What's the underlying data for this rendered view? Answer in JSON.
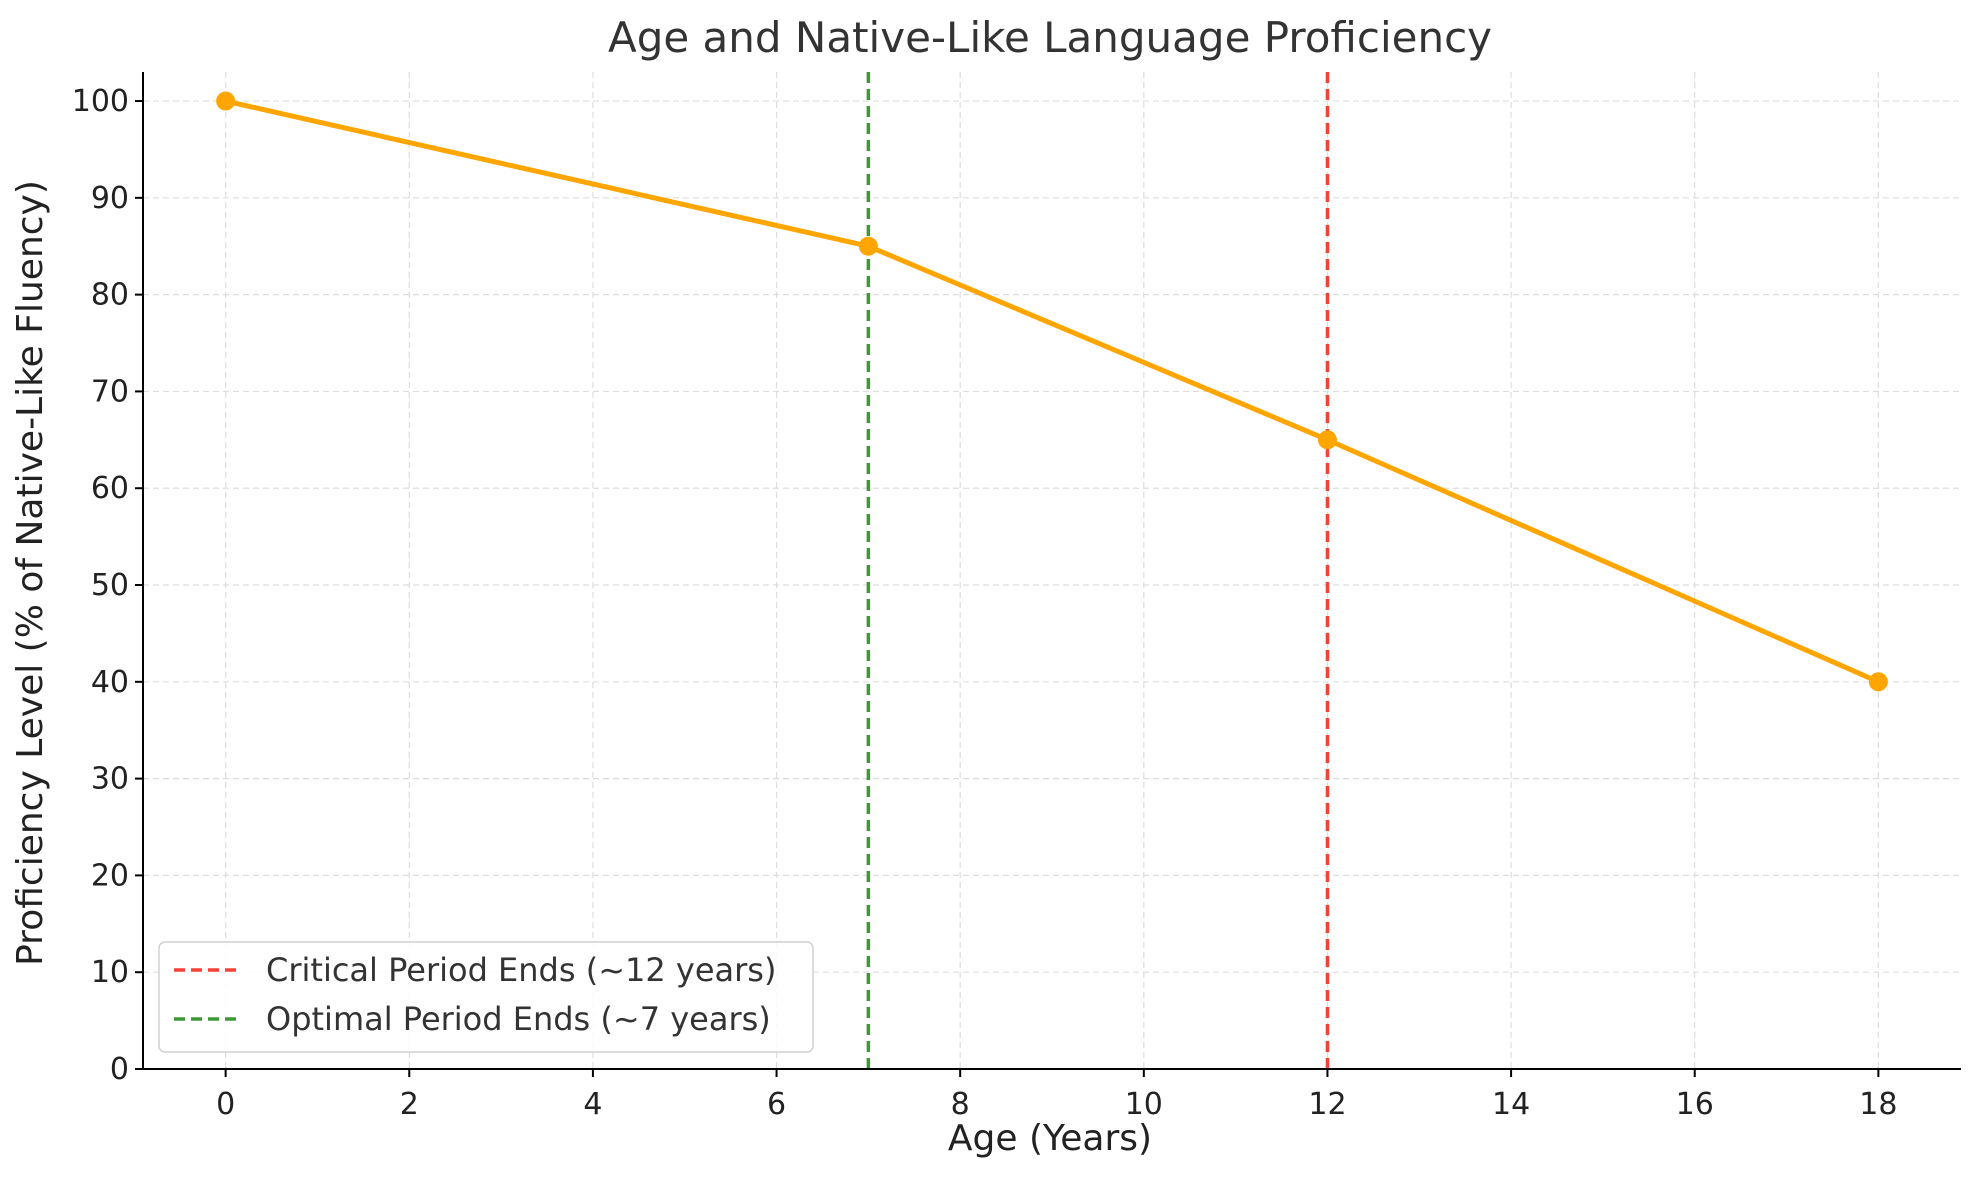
{
  "chart_data": {
    "type": "line",
    "title": "Age and Native-Like Language Proficiency",
    "xlabel": "Age (Years)",
    "ylabel": "Proficiency Level (% of Native-Like Fluency)",
    "xlim": [
      -0.9,
      18.9
    ],
    "ylim": [
      0,
      103
    ],
    "xticks": [
      0,
      2,
      4,
      6,
      8,
      10,
      12,
      14,
      16,
      18
    ],
    "yticks": [
      0,
      10,
      20,
      30,
      40,
      50,
      60,
      70,
      80,
      90,
      100
    ],
    "grid": true,
    "legend_position": "bottom-left",
    "series": [
      {
        "x": [
          0,
          7,
          12,
          18
        ],
        "y": [
          100,
          85,
          65,
          40
        ],
        "color": "#FFA500",
        "marker": "circle"
      }
    ],
    "reference_lines": [
      {
        "name": "Critical Period Ends (~12 years)",
        "x": 12,
        "color": "#F44336",
        "style": "dashed"
      },
      {
        "name": "Optimal Period Ends (~7 years)",
        "x": 7,
        "color": "#3C9A35",
        "style": "dashed"
      }
    ]
  }
}
